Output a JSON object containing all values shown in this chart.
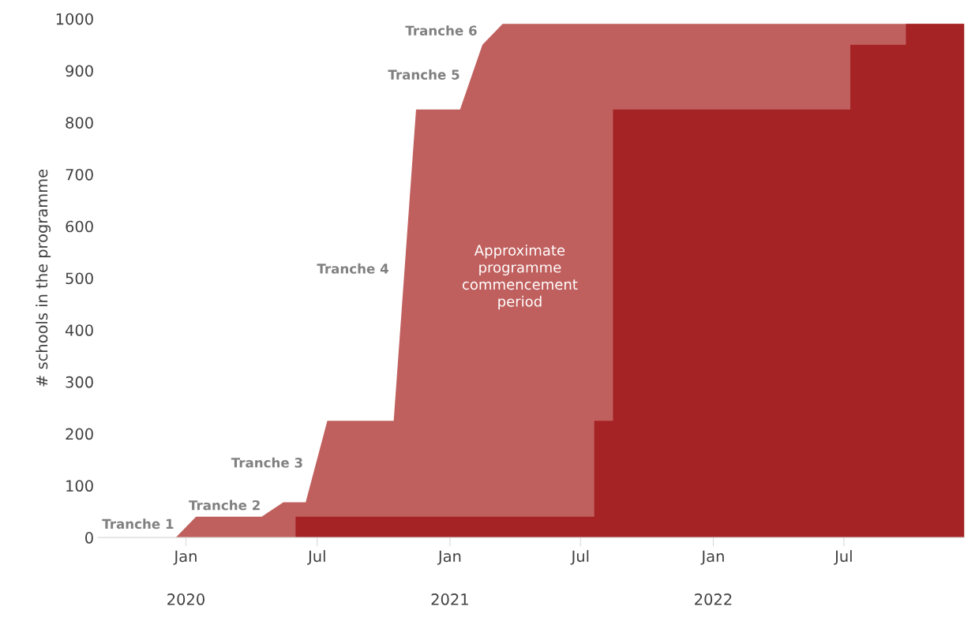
{
  "chart_data": {
    "type": "area",
    "ylabel": "# schools in the programme",
    "series": [
      {
        "color": "#c0605e",
        "x": [
          "2019-12-18",
          "2020-01-15",
          "2020-04-15",
          "2020-05-15",
          "2020-06-15",
          "2020-07-15",
          "2020-10-15",
          "2020-11-15",
          "2021-01-15",
          "2021-02-15",
          "2021-03-15",
          "2022-12-15"
        ],
        "values": [
          0,
          40,
          40,
          68,
          68,
          225,
          225,
          825,
          825,
          950,
          990,
          990
        ]
      },
      {
        "color": "#a52325",
        "x": [
          "2020-06-01",
          "2020-06-01",
          "2021-07-20",
          "2021-07-20",
          "2021-08-15",
          "2021-08-15",
          "2022-07-10",
          "2022-07-10",
          "2022-09-25",
          "2022-09-25",
          "2022-12-15"
        ],
        "values": [
          0,
          40,
          40,
          225,
          225,
          825,
          825,
          950,
          950,
          990,
          990
        ]
      }
    ],
    "xlim": [
      "2019-09-01",
      "2022-12-15"
    ],
    "ylim": [
      0,
      1000
    ],
    "xticks": [
      {
        "value": "2020-01-01",
        "label": "Jan"
      },
      {
        "value": "2020-07-01",
        "label": "Jul"
      },
      {
        "value": "2021-01-01",
        "label": "Jan"
      },
      {
        "value": "2021-07-01",
        "label": "Jul"
      },
      {
        "value": "2022-01-01",
        "label": "Jan"
      },
      {
        "value": "2022-07-01",
        "label": "Jul"
      }
    ],
    "x2lim": [
      "2019-09-01",
      "2022-12-15"
    ],
    "x2ticks": [
      {
        "value": "2020-01-01",
        "label": "2020"
      },
      {
        "value": "2021-01-01",
        "label": "2021"
      },
      {
        "value": "2022-01-01",
        "label": "2022"
      }
    ],
    "yticks": [
      0,
      100,
      200,
      300,
      400,
      500,
      600,
      700,
      800,
      900,
      1000
    ],
    "grid": false,
    "legend": false,
    "annotations": [
      "Tranche 1",
      "Tranche 2",
      "Tranche 3",
      "Tranche 4",
      "Tranche 5",
      "Tranche 6",
      "Approximate\nprogramme\ncommencement\nperiod"
    ]
  }
}
